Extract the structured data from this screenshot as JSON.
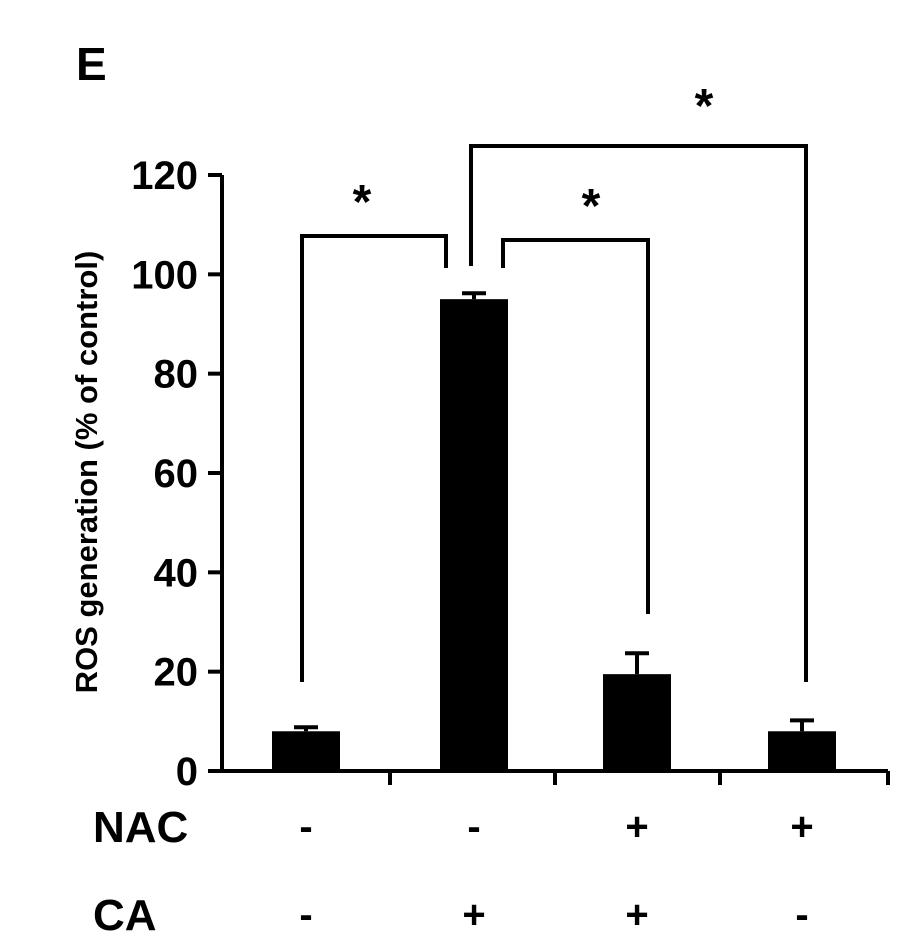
{
  "panel_label": "E",
  "chart_data": {
    "type": "bar",
    "categories": [
      "1",
      "2",
      "3",
      "4"
    ],
    "values": [
      8,
      95,
      19.5,
      8
    ],
    "errors": [
      0.8,
      1.2,
      4.2,
      2.2
    ],
    "ylabel": "ROS generation (% of control)",
    "ylim": [
      0,
      120
    ],
    "yticks": [
      "0",
      "20",
      "40",
      "60",
      "80",
      "100",
      "120"
    ],
    "grid": false,
    "bar_color": "#000000",
    "treatments": [
      {
        "name": "NAC",
        "values": [
          "-",
          "-",
          "+",
          "+"
        ]
      },
      {
        "name": "CA",
        "values": [
          "-",
          "+",
          "+",
          "-"
        ]
      }
    ],
    "significance": [
      {
        "from": 0,
        "to": 1,
        "label": "*"
      },
      {
        "from": 1,
        "to": 2,
        "label": "*"
      },
      {
        "from": 1,
        "to": 3,
        "label": "*"
      }
    ]
  }
}
